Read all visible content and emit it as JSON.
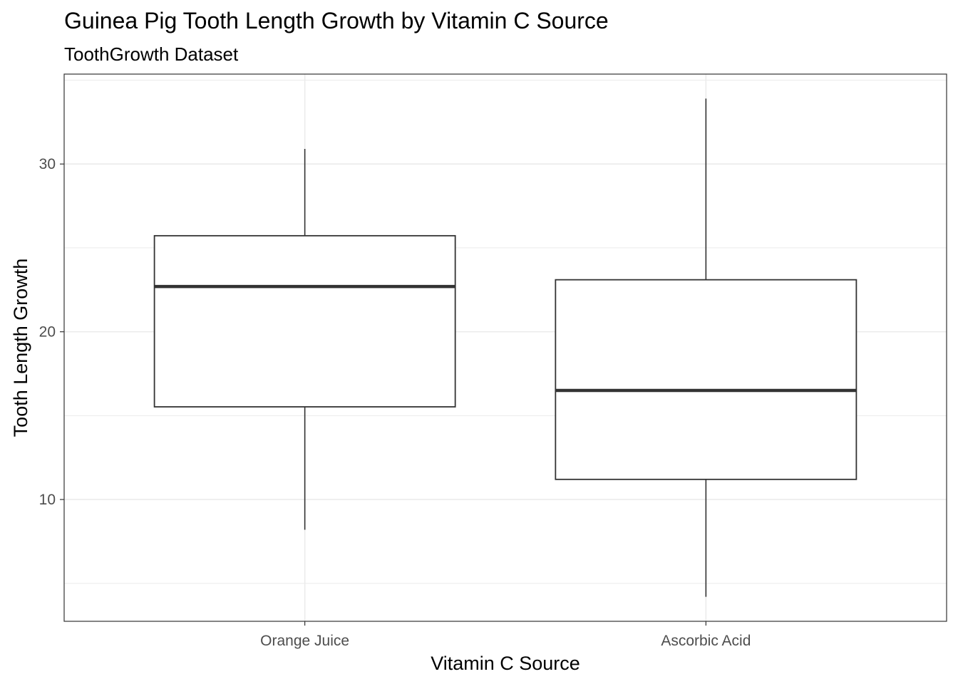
{
  "chart_data": {
    "type": "boxplot",
    "title": "Guinea Pig Tooth Length Growth by Vitamin C Source",
    "subtitle": "ToothGrowth Dataset",
    "xlabel": "Vitamin C Source",
    "ylabel": "Tooth Length Growth",
    "categories": [
      "Orange Juice",
      "Ascorbic Acid"
    ],
    "boxes": [
      {
        "category": "Orange Juice",
        "min": 8.2,
        "q1": 15.525,
        "median": 22.7,
        "q3": 25.725,
        "max": 30.9
      },
      {
        "category": "Ascorbic Acid",
        "min": 4.2,
        "q1": 11.2,
        "median": 16.5,
        "q3": 23.1,
        "max": 33.9
      }
    ],
    "ylim": [
      2.74,
      35.36
    ],
    "yticks": [
      10,
      20,
      30
    ],
    "ytick_labels": [
      "10",
      "20",
      "30"
    ],
    "grid": true,
    "theme": "bw",
    "colors": {
      "panel_border": "#333333",
      "box_line": "#333333",
      "grid": "#ebebeb",
      "tick_text": "#4d4d4d"
    }
  }
}
